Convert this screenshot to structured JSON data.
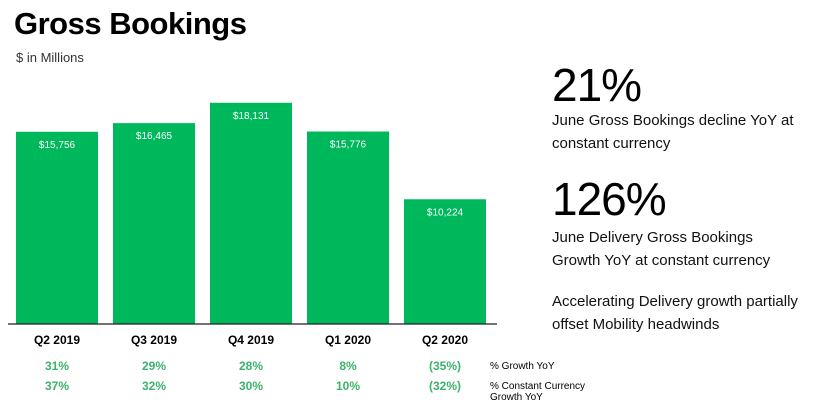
{
  "title": "Gross Bookings",
  "subtitle": "$ in Millions",
  "chart_data": {
    "type": "bar",
    "categories": [
      "Q2 2019",
      "Q3 2019",
      "Q4 2019",
      "Q1 2020",
      "Q2 2020"
    ],
    "values": [
      15756,
      16465,
      18131,
      15776,
      10224
    ],
    "value_labels": [
      "$15,756",
      "$16,465",
      "$18,131",
      "$15,776",
      "$10,224"
    ],
    "ylim": [
      0,
      20000
    ],
    "bar_color": "#00b85c",
    "grid": false,
    "table_rows": [
      {
        "label": "% Growth YoY",
        "values": [
          "31%",
          "29%",
          "28%",
          "8%",
          "(35%)"
        ]
      },
      {
        "label": "% Constant Currency Growth YoY",
        "values": [
          "37%",
          "32%",
          "30%",
          "10%",
          "(32%)"
        ]
      }
    ],
    "table_color": "#3bb36a"
  },
  "side": {
    "metric1_value": "21%",
    "metric1_desc": "June Gross Bookings decline YoY at constant currency",
    "metric2_value": "126%",
    "metric2_desc": "June Delivery Gross Bookings Growth YoY at constant currency",
    "note": "Accelerating Delivery growth partially offset Mobility headwinds"
  }
}
